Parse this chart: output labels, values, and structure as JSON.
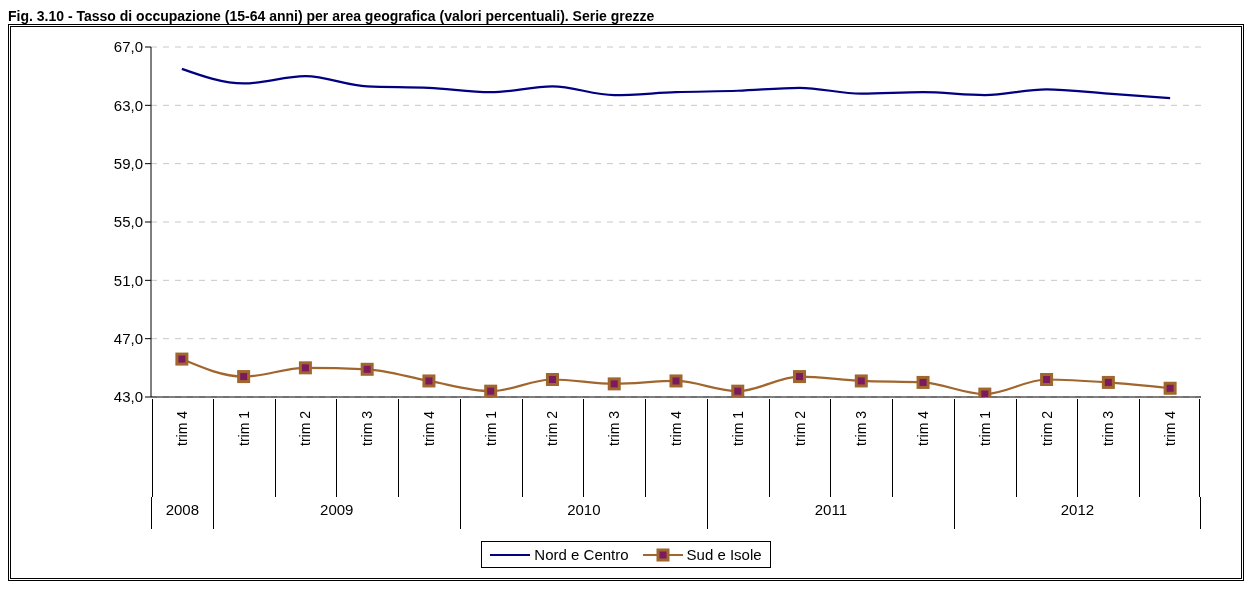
{
  "chart_data": {
    "type": "line",
    "title": "Fig. 3.10 - Tasso di occupazione (15-64 anni) per area geografica (valori percentuali). Serie grezze",
    "categories": [
      "trim 4",
      "trim 1",
      "trim 2",
      "trim 3",
      "trim 4",
      "trim 1",
      "trim 2",
      "trim 3",
      "trim 4",
      "trim 1",
      "trim 2",
      "trim 3",
      "trim 4",
      "trim 1",
      "trim 2",
      "trim 3",
      "trim 4"
    ],
    "annotations": [
      "2008",
      "2009",
      "2010",
      "2011",
      "2012"
    ],
    "series": [
      {
        "name": "Nord e Centro",
        "color": "#000080",
        "marker": "none",
        "values": [
          65.5,
          64.5,
          65.0,
          64.3,
          64.2,
          63.9,
          64.3,
          63.7,
          63.9,
          64.0,
          64.2,
          63.8,
          63.9,
          63.7,
          64.1,
          63.8,
          63.5
        ]
      },
      {
        "name": "Sud e Isole",
        "color": "#a0662e",
        "marker": "square",
        "values": [
          45.6,
          44.4,
          45.0,
          44.9,
          44.1,
          43.4,
          44.2,
          43.9,
          44.1,
          43.4,
          44.4,
          44.1,
          44.0,
          43.2,
          44.2,
          44.0,
          43.6
        ]
      }
    ],
    "ylim": [
      43,
      67
    ],
    "yticks": [
      {
        "value": 43,
        "label": "43,0"
      },
      {
        "value": 47,
        "label": "47,0"
      },
      {
        "value": 51,
        "label": "51,0"
      },
      {
        "value": 55,
        "label": "55,0"
      },
      {
        "value": 59,
        "label": "59,0"
      },
      {
        "value": 63,
        "label": "63,0"
      },
      {
        "value": 67,
        "label": "67,0"
      }
    ],
    "grid": "y",
    "legend": "bottom",
    "line_style": "solid"
  }
}
